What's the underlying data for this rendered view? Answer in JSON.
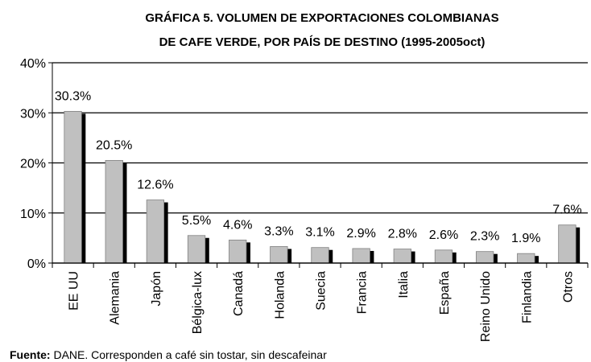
{
  "chart_data": {
    "type": "bar",
    "title": [
      "GRÁFICA 5. VOLUMEN DE EXPORTACIONES COLOMBIANAS",
      "DE CAFE VERDE, POR PAÍS DE DESTINO (1995-2005oct)"
    ],
    "categories": [
      "EE UU",
      "Alemania",
      "Japón",
      "Bélgica-lux",
      "Canadá",
      "Holanda",
      "Suecia",
      "Francia",
      "Italia",
      "España",
      "Reino Unido",
      "Finlandia",
      "Otros"
    ],
    "values": [
      30.3,
      20.5,
      12.6,
      5.5,
      4.6,
      3.3,
      3.1,
      2.9,
      2.8,
      2.6,
      2.3,
      1.9,
      7.6
    ],
    "value_labels": [
      "30.3%",
      "20.5%",
      "12.6%",
      "5.5%",
      "4.6%",
      "3.3%",
      "3.1%",
      "2.9%",
      "2.8%",
      "2.6%",
      "2.3%",
      "1.9%",
      "7.6%"
    ],
    "color": "#c0c0c0",
    "shadow_color": "#000000",
    "ylim": [
      0,
      40
    ],
    "yticks": [
      {
        "value": 0,
        "label": "0%"
      },
      {
        "value": 10,
        "label": "10%"
      },
      {
        "value": 20,
        "label": "20%"
      },
      {
        "value": 30,
        "label": "30%"
      },
      {
        "value": 40,
        "label": "40%"
      }
    ],
    "grid": true,
    "source_label": "Fuente:",
    "source": "DANE. Corresponden a café sin tostar, sin descafeinar"
  }
}
